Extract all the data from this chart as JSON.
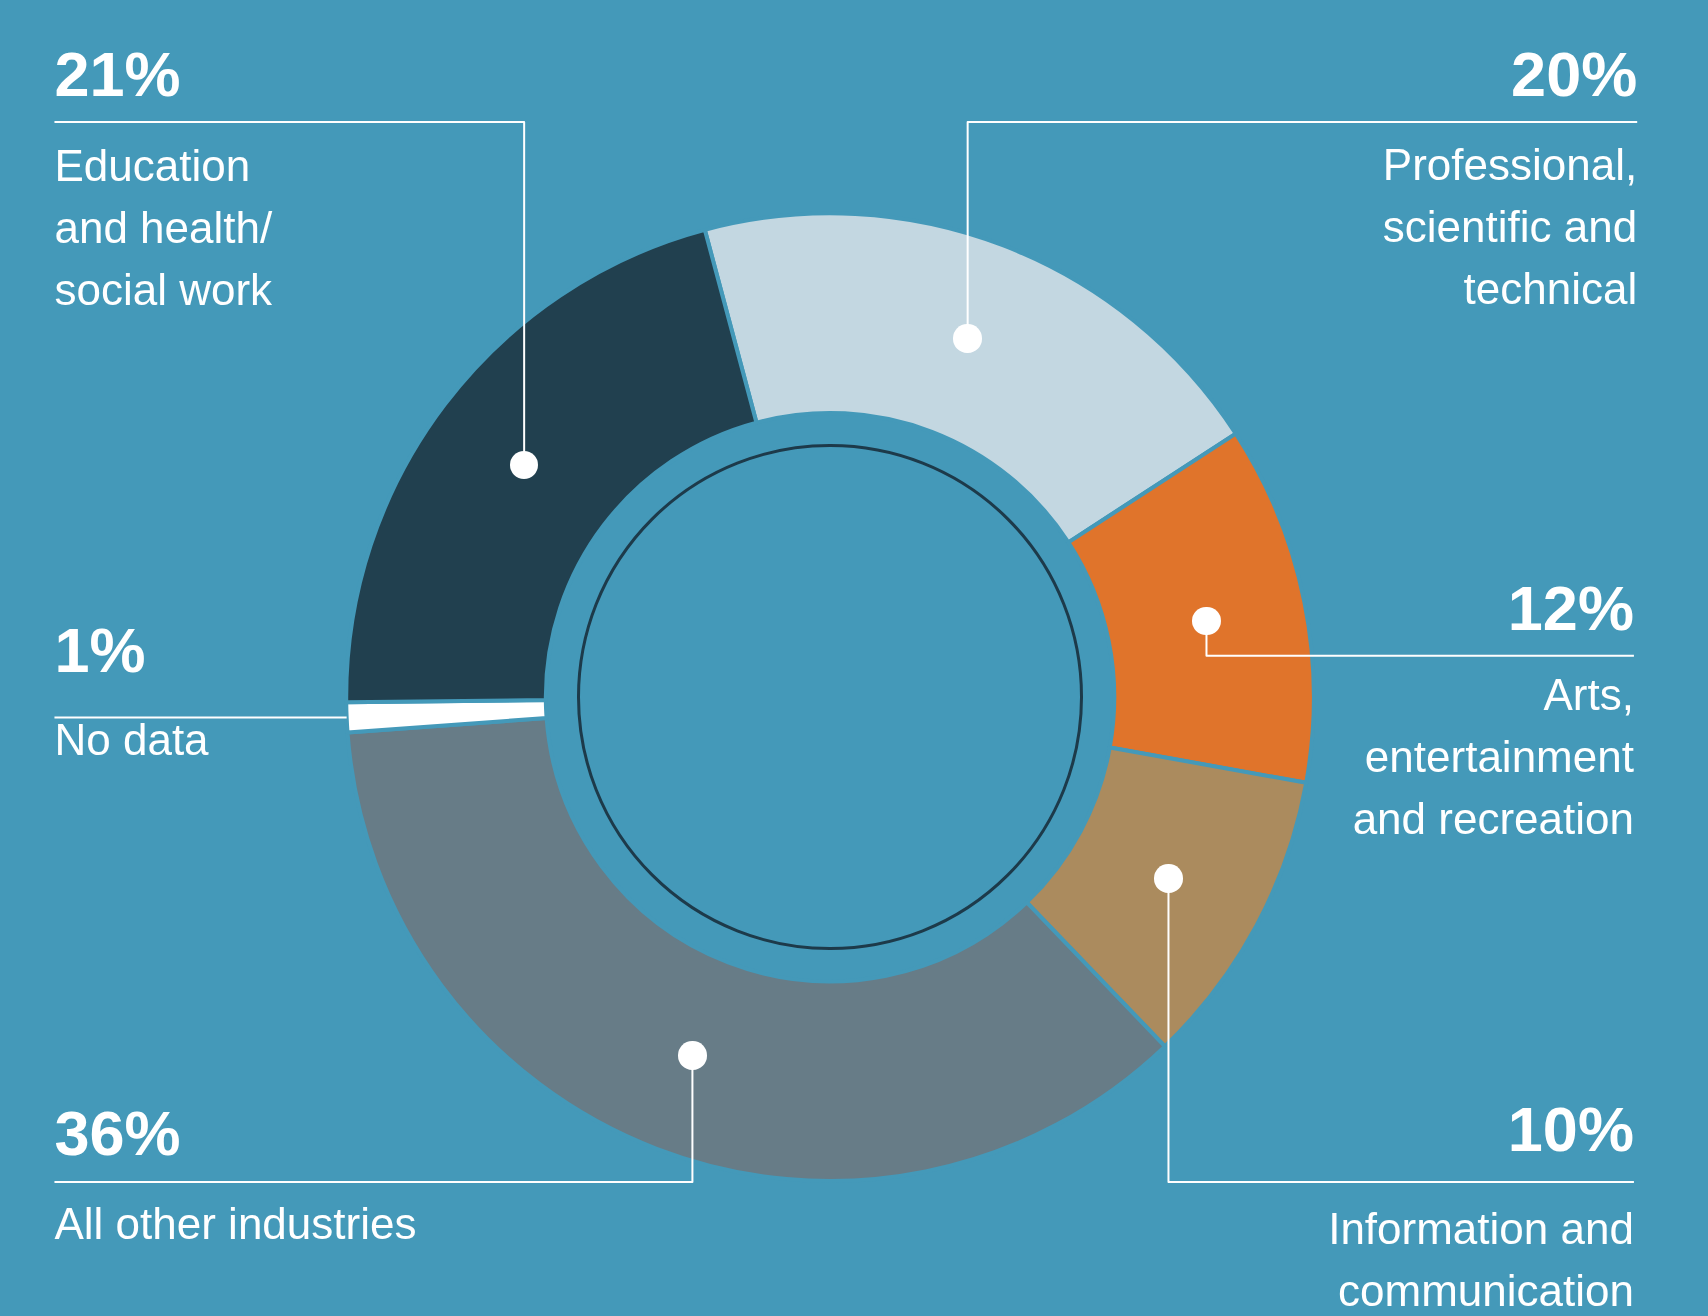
{
  "chart_data": {
    "type": "donut",
    "categories": [
      "Professional, scientific and technical",
      "Arts, entertainment and recreation",
      "Information and communication",
      "All other industries",
      "No data",
      "Education and health/ social work"
    ],
    "values": [
      20,
      12,
      10,
      36,
      1,
      21
    ],
    "value_labels": [
      "20%",
      "12%",
      "10%",
      "36%",
      "1%",
      "21%"
    ],
    "colors": [
      "#c3d7e1",
      "#e0742b",
      "#ab8b5e",
      "#677c87",
      "#ffffff",
      "#21404f"
    ],
    "legend": false
  }
}
